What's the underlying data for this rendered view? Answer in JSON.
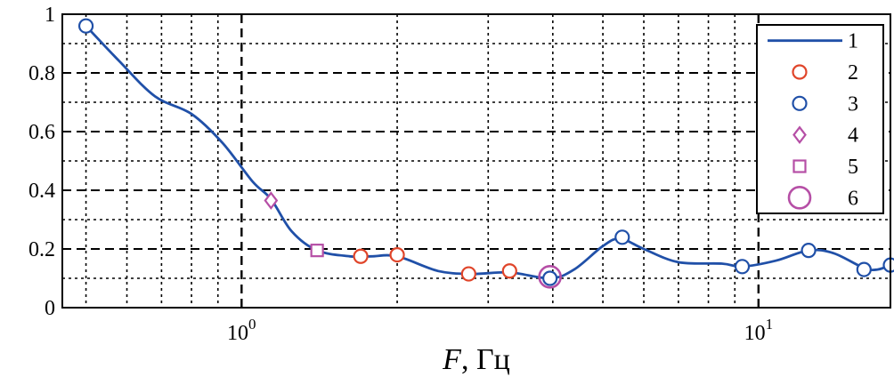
{
  "chart_data": {
    "type": "line",
    "xscale": "log",
    "xlim": [
      0.45,
      18
    ],
    "ylim": [
      0,
      1
    ],
    "grid": true,
    "legend_position": "top-right",
    "xlabel": {
      "italic": "F",
      "rest": ", Гц"
    },
    "ylabel": "",
    "title": "",
    "y_ticks": [
      {
        "value": 0,
        "label": "0"
      },
      {
        "value": 0.2,
        "label": "0.2"
      },
      {
        "value": 0.4,
        "label": "0.4"
      },
      {
        "value": 0.6,
        "label": "0.6"
      },
      {
        "value": 0.8,
        "label": "0.8"
      },
      {
        "value": 1,
        "label": "1"
      }
    ],
    "x_ticks": [
      {
        "value": 1,
        "base": "10",
        "exp": "0"
      },
      {
        "value": 10,
        "base": "10",
        "exp": "1"
      }
    ],
    "series": [
      {
        "name": "1",
        "style": "line",
        "color": "#2050a8",
        "x": [
          0.5,
          0.58,
          0.68,
          0.8,
          0.92,
          1.05,
          1.14,
          1.25,
          1.4,
          1.62,
          1.78,
          2.0,
          2.4,
          2.8,
          3.3,
          3.95,
          4.4,
          5.0,
          5.4,
          6.0,
          7.0,
          8.5,
          9.3,
          10.8,
          12.5,
          14.0,
          16.0,
          17.0,
          18.0
        ],
        "y": [
          0.96,
          0.84,
          0.72,
          0.66,
          0.56,
          0.43,
          0.37,
          0.26,
          0.195,
          0.175,
          0.175,
          0.175,
          0.125,
          0.115,
          0.12,
          0.1,
          0.13,
          0.21,
          0.235,
          0.2,
          0.155,
          0.15,
          0.14,
          0.16,
          0.195,
          0.185,
          0.135,
          0.13,
          0.145
        ]
      },
      {
        "name": "2",
        "style": "marker",
        "marker": "circle",
        "color": "#e0452a",
        "x": [
          1.7,
          2.0,
          2.75,
          3.3
        ],
        "y": [
          0.175,
          0.18,
          0.115,
          0.125
        ]
      },
      {
        "name": "3",
        "style": "marker",
        "marker": "circle",
        "color": "#2050a8",
        "x": [
          0.5,
          3.95,
          5.45,
          9.3,
          12.5,
          16.0,
          18.0
        ],
        "y": [
          0.96,
          0.1,
          0.24,
          0.14,
          0.195,
          0.13,
          0.145
        ]
      },
      {
        "name": "4",
        "style": "marker",
        "marker": "diamond",
        "color": "#b64fa6",
        "x": [
          1.14
        ],
        "y": [
          0.365
        ]
      },
      {
        "name": "5",
        "style": "marker",
        "marker": "square",
        "color": "#b64fa6",
        "x": [
          1.4
        ],
        "y": [
          0.195
        ]
      },
      {
        "name": "6",
        "style": "marker",
        "marker": "big-circle",
        "color": "#b64fa6",
        "x": [
          3.95
        ],
        "y": [
          0.105
        ]
      }
    ]
  }
}
